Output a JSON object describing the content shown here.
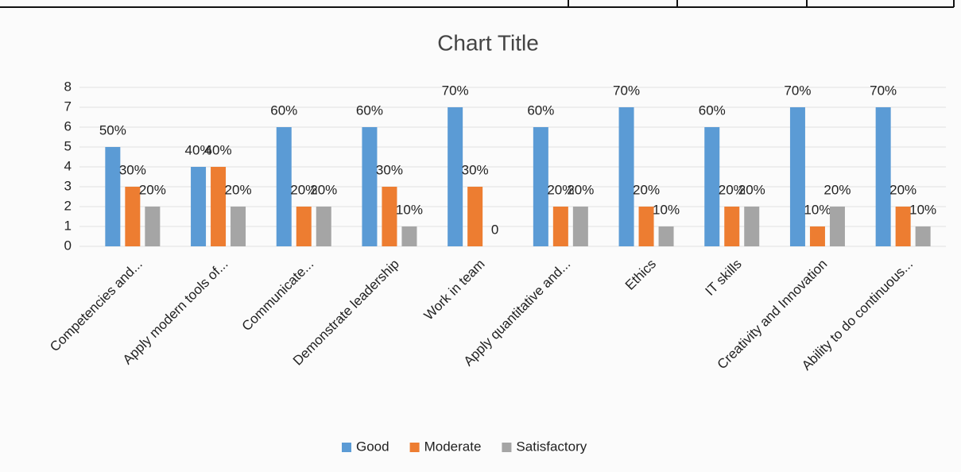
{
  "chart_data": {
    "type": "bar",
    "title": "Chart Title",
    "categories": [
      "Competencies and...",
      "Apply modern tools of...",
      "Communicate...",
      "Demonstrate leadership",
      "Work in team",
      "Apply quantitative and...",
      "Ethics",
      "IT skills",
      "Creativity and Innovation",
      "Ability to do continuous..."
    ],
    "series": [
      {
        "name": "Good",
        "color": "#5b9bd5",
        "values": [
          5,
          4,
          6,
          6,
          7,
          6,
          7,
          6,
          7,
          7
        ],
        "value_labels": [
          "50%",
          "40%",
          "60%",
          "60%",
          "70%",
          "60%",
          "70%",
          "60%",
          "70%",
          "70%"
        ]
      },
      {
        "name": "Moderate",
        "color": "#ed7d31",
        "values": [
          3,
          4,
          2,
          3,
          3,
          2,
          2,
          2,
          1,
          2
        ],
        "value_labels": [
          "30%",
          "40%",
          "20%",
          "30%",
          "30%",
          "20%",
          "20%",
          "20%",
          "10%",
          "20%"
        ]
      },
      {
        "name": "Satisfactory",
        "color": "#a5a5a5",
        "values": [
          2,
          2,
          2,
          1,
          0,
          2,
          1,
          2,
          2,
          1
        ],
        "value_labels": [
          "20%",
          "20%",
          "20%",
          "10%",
          "0",
          "20%",
          "10%",
          "20%",
          "20%",
          "10%"
        ]
      }
    ],
    "ylim": [
      0,
      8
    ],
    "yticks": [
      0,
      1,
      2,
      3,
      4,
      5,
      6,
      7,
      8
    ],
    "grid": true,
    "legend": "bottom"
  }
}
